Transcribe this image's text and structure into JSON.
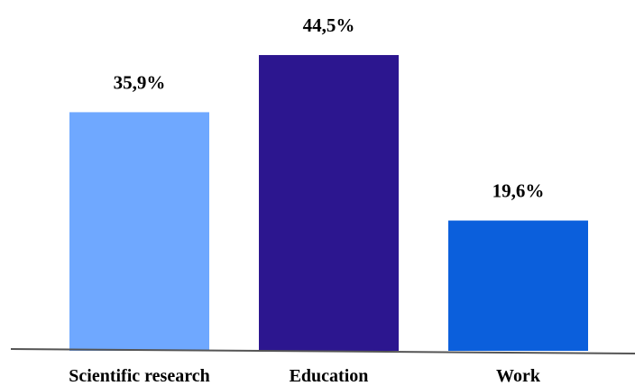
{
  "chart_data": {
    "type": "bar",
    "categories": [
      "Scientific research",
      "Education",
      "Work"
    ],
    "values": [
      35.9,
      44.5,
      19.6
    ],
    "value_labels": [
      "35,9%",
      "44,5%",
      "19,6%"
    ],
    "colors": [
      "#6fa8ff",
      "#2c168f",
      "#0b5fdc"
    ],
    "axis_color": "#555555",
    "title": "",
    "xlabel": "",
    "ylabel": "",
    "ylim": [
      0,
      50
    ],
    "grid": false,
    "legend": "none"
  }
}
